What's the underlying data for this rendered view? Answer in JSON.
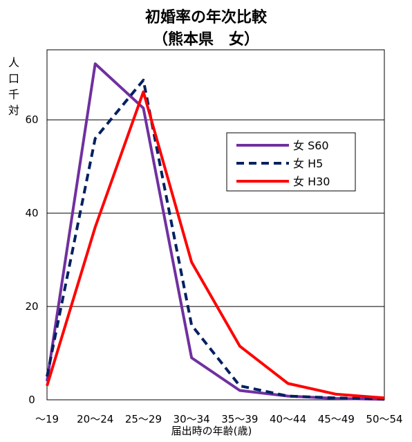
{
  "chart_data": {
    "type": "line",
    "title": "初婚率の年次比較",
    "subtitle": "（熊本県　女）",
    "ylabel": "人口千対",
    "xlabel": "届出時の年齢(歳)",
    "categories": [
      "〜19",
      "20〜24",
      "25〜29",
      "30〜34",
      "35〜39",
      "40〜44",
      "45〜49",
      "50〜54"
    ],
    "ylim": [
      0,
      75
    ],
    "yticks": [
      0,
      20,
      40,
      60
    ],
    "grid": true,
    "legend_position": "upper-right",
    "series": [
      {
        "name": "女 S60",
        "color": "#7030A0",
        "style": "solid",
        "values": [
          4,
          72,
          62.5,
          9,
          2,
          0.8,
          0.3,
          0.1
        ]
      },
      {
        "name": "女 H5",
        "color": "#002060",
        "style": "dashed",
        "values": [
          5,
          56,
          68.5,
          16,
          3,
          0.8,
          0.4,
          0.2
        ]
      },
      {
        "name": "女 H30",
        "color": "#FF0000",
        "style": "solid",
        "values": [
          3,
          37,
          66,
          29.5,
          11.5,
          3.5,
          1.2,
          0.4
        ]
      }
    ]
  }
}
